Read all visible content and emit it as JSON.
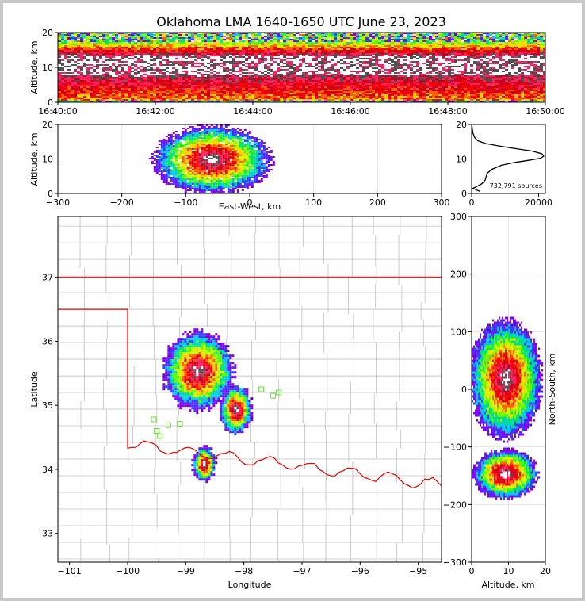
{
  "title": "Oklahoma LMA 1640-1650 UTC June 23, 2023",
  "colors": {
    "scale": [
      "#6a00c8",
      "#8800ff",
      "#3040ff",
      "#00c8ff",
      "#00e070",
      "#50ff00",
      "#c8ff00",
      "#ffd000",
      "#ff6000",
      "#ff0000",
      "#c80020",
      "#ff2060",
      "#505050",
      "#ffffff"
    ],
    "border": "#e00000",
    "county": "#c0c0c0",
    "station": "#66dd33"
  },
  "chart_data": [
    {
      "id": "time_height",
      "type": "heatmap",
      "xlabel": "",
      "ylabel": "Altitude, km",
      "x_ticks": [
        "16:40:00",
        "16:42:00",
        "16:44:00",
        "16:46:00",
        "16:48:00",
        "16:50:00"
      ],
      "y_ticks": [
        "0",
        "10",
        "20"
      ],
      "xlim": [
        "16:40:00",
        "16:50:00"
      ],
      "ylim": [
        0,
        20
      ]
    },
    {
      "id": "ew_height",
      "type": "heatmap",
      "xlabel": "East-West, km",
      "ylabel": "Altitude, km",
      "x_ticks": [
        "−300",
        "−200",
        "−100",
        "0",
        "100",
        "200",
        "300"
      ],
      "y_ticks": [
        "0",
        "10",
        "20"
      ],
      "xlim": [
        -300,
        300
      ],
      "ylim": [
        0,
        20
      ],
      "grid": true
    },
    {
      "id": "altitude_histogram",
      "type": "line",
      "x_ticks": [
        "0",
        "20000"
      ],
      "y_ticks": [
        "0",
        "10",
        "20"
      ],
      "xlim": [
        0,
        22000
      ],
      "ylim": [
        0,
        20
      ],
      "annotation": "732,791 sources",
      "x": [
        2500,
        1500,
        400,
        1500,
        3000,
        4000,
        4300,
        4600,
        6000,
        9000,
        13000,
        17000,
        20500,
        21500,
        21000,
        18000,
        13000,
        8000,
        4000,
        1800,
        900,
        400,
        150,
        50
      ],
      "y": [
        0.6,
        1.0,
        1.5,
        2.0,
        2.8,
        3.8,
        4.8,
        5.8,
        7.0,
        8.2,
        9.0,
        9.6,
        10.2,
        10.8,
        11.5,
        12.3,
        13.0,
        13.8,
        14.5,
        15.3,
        16.2,
        17.5,
        19.0,
        20.5
      ]
    },
    {
      "id": "plan_view",
      "type": "heatmap",
      "xlabel": "Longitude",
      "ylabel": "Latitude",
      "x_ticks": [
        "−101",
        "−100",
        "−99",
        "−98",
        "−97",
        "−96",
        "−95"
      ],
      "y_ticks": [
        "33",
        "34",
        "35",
        "36",
        "37"
      ],
      "xlim": [
        -101.2,
        -94.6
      ],
      "ylim": [
        32.55,
        37.95
      ]
    },
    {
      "id": "ns_height",
      "type": "heatmap",
      "xlabel": "Altitude, km",
      "ylabel": "North-South, km",
      "x_ticks": [
        "0",
        "10",
        "20"
      ],
      "y_ticks": [
        "−300",
        "−200",
        "−100",
        "0",
        "100",
        "200",
        "300"
      ],
      "xlim": [
        0,
        20
      ],
      "ylim": [
        -300,
        300
      ],
      "grid": true
    }
  ]
}
